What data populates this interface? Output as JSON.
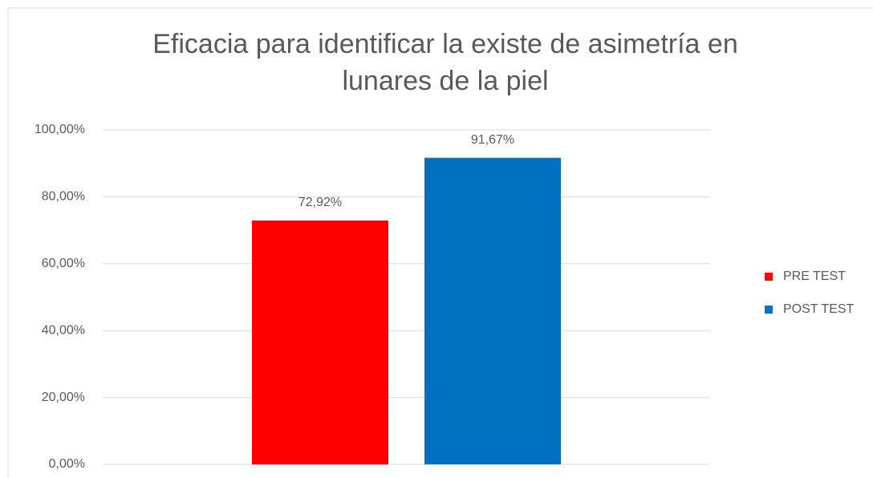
{
  "chart_data": {
    "type": "bar",
    "title": "Eficacia para identificar la existe de asimetría en lunares de la piel",
    "categories": [
      null
    ],
    "series": [
      {
        "name": "PRE TEST",
        "color": "#ff0000",
        "values": [
          72.92
        ],
        "value_labels": [
          "72,92%"
        ]
      },
      {
        "name": "POST TEST",
        "color": "#0070c0",
        "values": [
          91.67
        ],
        "value_labels": [
          "91,67%"
        ]
      }
    ],
    "ylim": [
      0,
      100
    ],
    "yticks": [
      {
        "value": 0,
        "label": "0,00%"
      },
      {
        "value": 20,
        "label": "20,00%"
      },
      {
        "value": 40,
        "label": "40,00%"
      },
      {
        "value": 60,
        "label": "60,00%"
      },
      {
        "value": 80,
        "label": "80,00%"
      },
      {
        "value": 100,
        "label": "100,00%"
      }
    ],
    "grid": true,
    "legend": "right"
  }
}
